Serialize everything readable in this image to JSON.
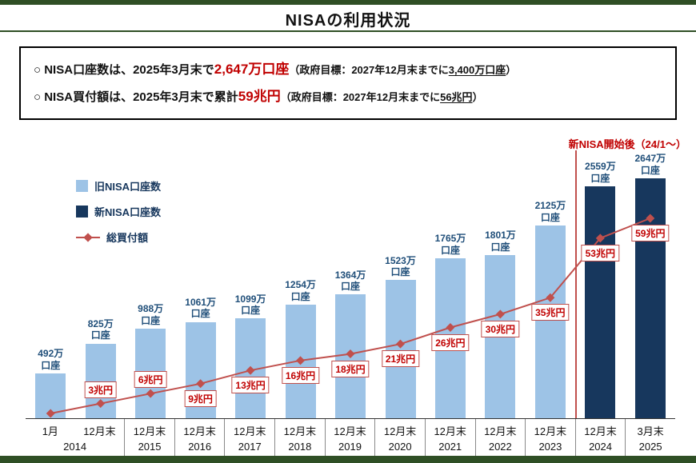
{
  "title": "NISAの利用状況",
  "annotation": "新NISA開始後（24/1～）",
  "colors": {
    "brand_green": "#2f4f25",
    "old_nisa_blue": "#9dc3e6",
    "new_nisa_navy": "#17375d",
    "line_red": "#c0504d",
    "accent_red": "#c00000",
    "bar_label_navy": "#1f4e79"
  },
  "summary": {
    "lines": [
      {
        "segments": [
          {
            "text": "○ NISA口座数は、2025年3月末で",
            "style": "base"
          },
          {
            "text": "2,647万口座",
            "style": "accent"
          },
          {
            "text": "（政府目標：2027年12月末までに",
            "style": "paren"
          },
          {
            "text": "3,400万口座",
            "style": "paren_underline"
          },
          {
            "text": "）",
            "style": "paren"
          }
        ]
      },
      {
        "segments": [
          {
            "text": "○ NISA買付額は、2025年3月末で累計",
            "style": "base"
          },
          {
            "text": "59兆円",
            "style": "accent"
          },
          {
            "text": "（政府目標：2027年12月末までに",
            "style": "paren"
          },
          {
            "text": "56兆円",
            "style": "paren_underline"
          },
          {
            "text": "）",
            "style": "paren"
          }
        ]
      }
    ]
  },
  "legend": [
    {
      "id": "old-nisa",
      "swatch": "old",
      "label": "旧NISA口座数"
    },
    {
      "id": "new-nisa",
      "swatch": "new",
      "label": "新NISA口座数"
    },
    {
      "id": "total-purchase",
      "swatch": "line",
      "label": "総買付額"
    }
  ],
  "chart_data": {
    "type": "bar+line",
    "y_axes_visible": false,
    "legend_position": "top-left-inside-plot",
    "bar_unit": "万口座",
    "line_unit": "兆円",
    "line_series_name": "総買付額",
    "bar_series_old_name": "旧NISA口座数",
    "bar_series_new_name": "新NISA口座数",
    "new_nisa_start_year": "2024",
    "points": [
      {
        "month": "1月",
        "year": "2014",
        "accounts_10k": 492,
        "bar_label": "492万",
        "bar_unit": "口座",
        "bar_series": "old",
        "amount_tyen": 0,
        "amount_label": "",
        "amount_label_pos": ""
      },
      {
        "month": "12月末",
        "year": "2014",
        "accounts_10k": 825,
        "bar_label": "825万",
        "bar_unit": "口座",
        "bar_series": "old",
        "amount_tyen": 3,
        "amount_label": "3兆円",
        "amount_label_pos": "above"
      },
      {
        "month": "12月末",
        "year": "2015",
        "accounts_10k": 988,
        "bar_label": "988万",
        "bar_unit": "口座",
        "bar_series": "old",
        "amount_tyen": 6,
        "amount_label": "6兆円",
        "amount_label_pos": "above"
      },
      {
        "month": "12月末",
        "year": "2016",
        "accounts_10k": 1061,
        "bar_label": "1061万",
        "bar_unit": "口座",
        "bar_series": "old",
        "amount_tyen": 9,
        "amount_label": "9兆円",
        "amount_label_pos": "below"
      },
      {
        "month": "12月末",
        "year": "2017",
        "accounts_10k": 1099,
        "bar_label": "1099万",
        "bar_unit": "口座",
        "bar_series": "old",
        "amount_tyen": 13,
        "amount_label": "13兆円",
        "amount_label_pos": "below"
      },
      {
        "month": "12月末",
        "year": "2018",
        "accounts_10k": 1254,
        "bar_label": "1254万",
        "bar_unit": "口座",
        "bar_series": "old",
        "amount_tyen": 16,
        "amount_label": "16兆円",
        "amount_label_pos": "below"
      },
      {
        "month": "12月末",
        "year": "2019",
        "accounts_10k": 1364,
        "bar_label": "1364万",
        "bar_unit": "口座",
        "bar_series": "old",
        "amount_tyen": 18,
        "amount_label": "18兆円",
        "amount_label_pos": "below"
      },
      {
        "month": "12月末",
        "year": "2020",
        "accounts_10k": 1523,
        "bar_label": "1523万",
        "bar_unit": "口座",
        "bar_series": "old",
        "amount_tyen": 21,
        "amount_label": "21兆円",
        "amount_label_pos": "below"
      },
      {
        "month": "12月末",
        "year": "2021",
        "accounts_10k": 1765,
        "bar_label": "1765万",
        "bar_unit": "口座",
        "bar_series": "old",
        "amount_tyen": 26,
        "amount_label": "26兆円",
        "amount_label_pos": "below"
      },
      {
        "month": "12月末",
        "year": "2022",
        "accounts_10k": 1801,
        "bar_label": "1801万",
        "bar_unit": "口座",
        "bar_series": "old",
        "amount_tyen": 30,
        "amount_label": "30兆円",
        "amount_label_pos": "below"
      },
      {
        "month": "12月末",
        "year": "2023",
        "accounts_10k": 2125,
        "bar_label": "2125万",
        "bar_unit": "口座",
        "bar_series": "old",
        "amount_tyen": 35,
        "amount_label": "35兆円",
        "amount_label_pos": "below"
      },
      {
        "month": "12月末",
        "year": "2024",
        "accounts_10k": 2559,
        "bar_label": "2559万",
        "bar_unit": "口座",
        "bar_series": "new",
        "amount_tyen": 53,
        "amount_label": "53兆円",
        "amount_label_pos": "below"
      },
      {
        "month": "3月末",
        "year": "2025",
        "accounts_10k": 2647,
        "bar_label": "2647万",
        "bar_unit": "口座",
        "bar_series": "new",
        "amount_tyen": 59,
        "amount_label": "59兆円",
        "amount_label_pos": "below"
      }
    ]
  }
}
